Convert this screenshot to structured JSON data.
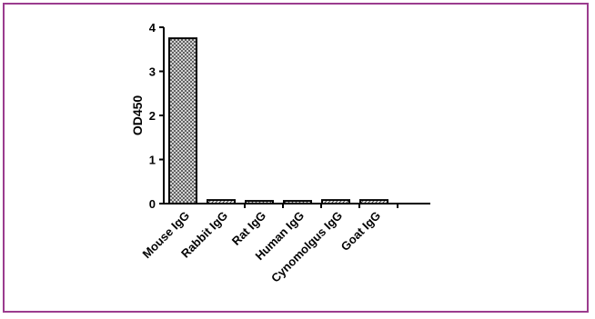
{
  "colors": {
    "frame": "#9b3c8e",
    "axis": "#000000",
    "bar_stroke": "#000000"
  },
  "chart_data": {
    "type": "bar",
    "title": "",
    "xlabel": "",
    "ylabel": "OD450",
    "ylim": [
      0,
      4
    ],
    "yticks": [
      "0",
      "1",
      "2",
      "3",
      "4"
    ],
    "categories": [
      "Mouse IgG",
      "Rabbit IgG",
      "Rat IgG",
      "Human IgG",
      "Cynomolgus IgG",
      "Goat IgG"
    ],
    "values": [
      3.75,
      0.08,
      0.06,
      0.06,
      0.08,
      0.08
    ],
    "grid": false,
    "legend": "none",
    "fill_patterns": [
      "crosshatch",
      "hatch",
      "hatch",
      "hatch",
      "hatch",
      "hatch"
    ]
  }
}
